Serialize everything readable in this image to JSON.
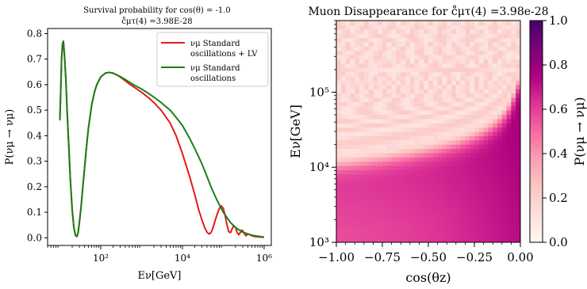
{
  "chart_data": [
    {
      "type": "line",
      "title": "Survival probability for cos(θ) = -1.0",
      "subtitle": "c̊μτ(4) =3.98E-28",
      "xlabel": "Eν[GeV]",
      "ylabel": "P(νμ → νμ)",
      "xscale": "log",
      "xlim": [
        5,
        1500000
      ],
      "ylim": [
        -0.03,
        0.82
      ],
      "xticks": [
        100,
        10000,
        1000000
      ],
      "xtick_labels": [
        "10²",
        "10⁴",
        "10⁶"
      ],
      "yticks": [
        0.0,
        0.1,
        0.2,
        0.3,
        0.4,
        0.5,
        0.6,
        0.7,
        0.8
      ],
      "ytick_labels": [
        "0.0",
        "0.1",
        "0.2",
        "0.3",
        "0.4",
        "0.5",
        "0.6",
        "0.7",
        "0.8"
      ],
      "legend_position": "top-right",
      "series": [
        {
          "name_line1": "νμ Standard",
          "name_line2": "oscillations + LV",
          "color": "#e31a1c",
          "x": [
            10,
            10.5,
            11,
            11.6,
            12.2,
            13,
            14,
            15,
            16.5,
            18,
            20,
            22,
            24,
            26,
            28,
            30,
            33,
            36,
            40,
            45,
            50,
            60,
            70,
            80,
            100,
            130,
            160,
            200,
            250,
            300,
            400,
            500,
            700,
            1000,
            1500,
            2000,
            3000,
            5000,
            7000,
            10000,
            15000,
            20000,
            25000,
            30000,
            35000,
            40000,
            45000,
            50000,
            55000,
            60000,
            70000,
            80000,
            90000,
            100000,
            110000,
            120000,
            135000,
            150000,
            165000,
            180000,
            200000,
            220000,
            240000,
            260000,
            280000,
            300000,
            330000,
            360000,
            400000,
            450000,
            500000,
            600000,
            700000,
            800000,
            1000000
          ],
          "y": [
            0.46,
            0.58,
            0.7,
            0.76,
            0.77,
            0.71,
            0.62,
            0.5,
            0.36,
            0.23,
            0.11,
            0.04,
            0.01,
            0.005,
            0.02,
            0.06,
            0.12,
            0.19,
            0.27,
            0.36,
            0.43,
            0.52,
            0.57,
            0.6,
            0.63,
            0.645,
            0.648,
            0.645,
            0.638,
            0.63,
            0.615,
            0.603,
            0.587,
            0.57,
            0.548,
            0.53,
            0.5,
            0.45,
            0.4,
            0.33,
            0.24,
            0.17,
            0.11,
            0.07,
            0.04,
            0.022,
            0.015,
            0.02,
            0.035,
            0.055,
            0.09,
            0.115,
            0.125,
            0.115,
            0.09,
            0.06,
            0.025,
            0.02,
            0.035,
            0.048,
            0.04,
            0.02,
            0.012,
            0.02,
            0.03,
            0.028,
            0.015,
            0.008,
            0.015,
            0.012,
            0.008,
            0.005,
            0.004,
            0.003,
            0.002
          ]
        },
        {
          "name_line1": "νμ Standard",
          "name_line2": "oscillations",
          "color": "#1a7f1a",
          "x": [
            10,
            10.5,
            11,
            11.6,
            12.2,
            13,
            14,
            15,
            16.5,
            18,
            20,
            22,
            24,
            26,
            28,
            30,
            33,
            36,
            40,
            45,
            50,
            60,
            70,
            80,
            100,
            130,
            160,
            200,
            250,
            300,
            400,
            500,
            700,
            1000,
            1500,
            2000,
            3000,
            5000,
            7000,
            10000,
            15000,
            20000,
            30000,
            40000,
            50000,
            70000,
            100000,
            150000,
            200000,
            300000,
            500000,
            700000,
            1000000
          ],
          "y": [
            0.46,
            0.58,
            0.7,
            0.76,
            0.77,
            0.71,
            0.62,
            0.5,
            0.36,
            0.23,
            0.11,
            0.04,
            0.01,
            0.005,
            0.02,
            0.06,
            0.12,
            0.19,
            0.27,
            0.36,
            0.43,
            0.52,
            0.57,
            0.6,
            0.63,
            0.645,
            0.648,
            0.645,
            0.638,
            0.632,
            0.62,
            0.61,
            0.596,
            0.583,
            0.565,
            0.551,
            0.53,
            0.5,
            0.472,
            0.44,
            0.39,
            0.35,
            0.29,
            0.24,
            0.2,
            0.148,
            0.1,
            0.06,
            0.04,
            0.022,
            0.01,
            0.006,
            0.003
          ]
        }
      ]
    },
    {
      "type": "heatmap",
      "title": "Muon Disappearance for c̊μτ(4) =3.98e-28",
      "xlabel": "cos(θz)",
      "ylabel": "Eν[GeV]",
      "xlim": [
        -1.0,
        0.0
      ],
      "ylim": [
        1000,
        900000
      ],
      "yscale": "log",
      "xticks": [
        -1.0,
        -0.75,
        -0.5,
        -0.25,
        0.0
      ],
      "xtick_labels": [
        "−1.00",
        "−0.75",
        "−0.50",
        "−0.25",
        "0.00"
      ],
      "yticks": [
        1000,
        10000,
        100000
      ],
      "ytick_labels": [
        "10³",
        "10⁴",
        "10⁵"
      ],
      "colorbar_label": "P(νμ → νμ)",
      "colorbar_ticks": [
        0.0,
        0.2,
        0.4,
        0.6,
        0.8,
        1.0
      ],
      "colorbar_tick_labels": [
        "0.0",
        "0.2",
        "0.4",
        "0.6",
        "0.8",
        "1.0"
      ],
      "colormap": [
        "#fff7f3",
        "#fde0dd",
        "#fcc5c0",
        "#fa9fb5",
        "#f768a1",
        "#dd3497",
        "#ae017e",
        "#7a0177",
        "#49006a"
      ]
    }
  ]
}
